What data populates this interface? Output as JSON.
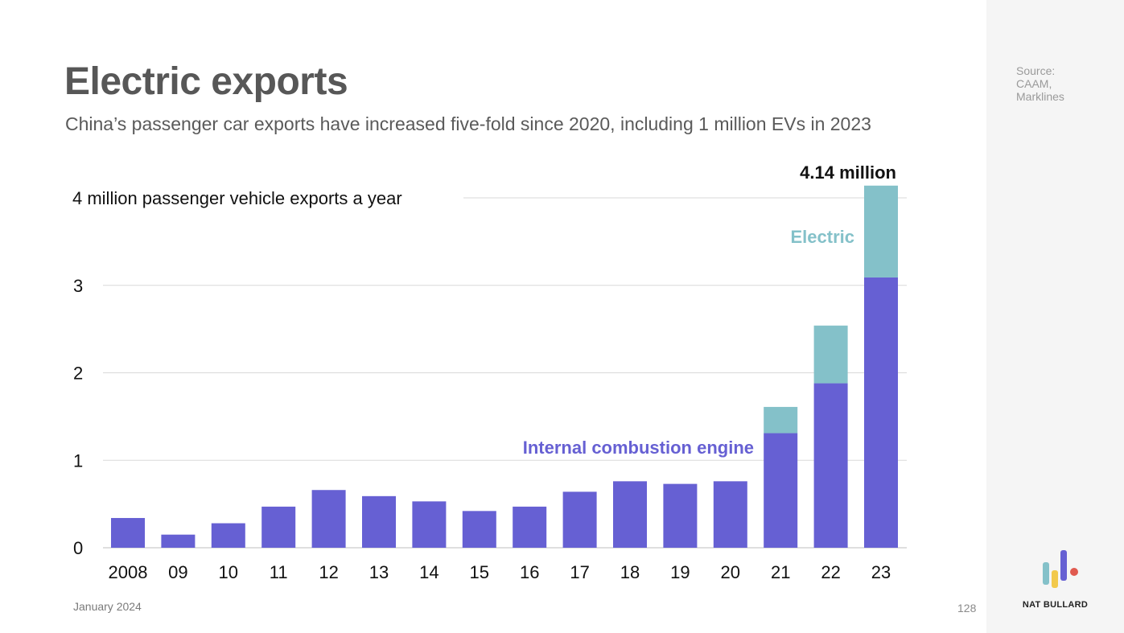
{
  "header": {
    "title": "Electric exports",
    "subtitle": "China’s passenger car exports have increased five-fold since 2020, including 1 million EVs in 2023"
  },
  "sidebar": {
    "source_lines": [
      "Source:",
      "CAAM,",
      "Marklines"
    ],
    "brand": "NAT BULLARD"
  },
  "footer": {
    "date": "January 2024",
    "page_number": "128"
  },
  "colors": {
    "ice": "#6660d3",
    "electric": "#84c1c9",
    "grid": "#d9d9d9",
    "title": "#575757"
  },
  "chart_data": {
    "type": "bar",
    "stacked": true,
    "title": "",
    "xlabel": "",
    "ylabel": "",
    "ylim": [
      0,
      4
    ],
    "y_ticks": [
      0,
      1,
      2,
      3,
      4
    ],
    "y_tick_labels": [
      "0",
      "1",
      "2",
      "3",
      "4 million passenger vehicle exports a year"
    ],
    "grid": true,
    "categories": [
      "2008",
      "09",
      "10",
      "11",
      "12",
      "13",
      "14",
      "15",
      "16",
      "17",
      "18",
      "19",
      "20",
      "21",
      "22",
      "23"
    ],
    "series": [
      {
        "name": "Internal combustion engine",
        "color": "#6660d3",
        "values": [
          0.34,
          0.15,
          0.28,
          0.47,
          0.66,
          0.59,
          0.53,
          0.42,
          0.47,
          0.64,
          0.76,
          0.73,
          0.76,
          1.31,
          1.88,
          3.09
        ]
      },
      {
        "name": "Electric",
        "color": "#84c1c9",
        "values": [
          0,
          0,
          0,
          0,
          0,
          0,
          0,
          0,
          0,
          0,
          0,
          0,
          0,
          0.3,
          0.66,
          1.05
        ]
      }
    ],
    "annotations": {
      "total_label": "4.14 million"
    }
  }
}
